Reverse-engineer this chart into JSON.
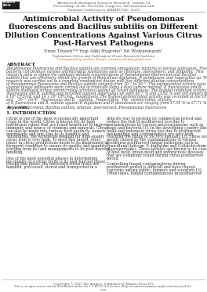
{
  "background_color": "#ffffff",
  "header_journal": "Advances in Biological Sciences Research, volume 14",
  "header_conf": "Proceedings of the 3rd IGHE Congress, International and",
  "header_conf2": "National Conferences (KABIRCTAC 2020)",
  "title": "Antimicrobial Activity of Pseudomonas\nfluorescens and Bacillus subtilis on Different\nDilution Concentrations Against Various Citrus\nPost-Harvest Pathogens",
  "authors": "Unan Triasih¹²* Yogi Adhi Nugroho¹ Sri Widyaningsih¹",
  "affil1": "¹Indonesian Citrus and Subtropical Fruits Research Institute",
  "affil2": "²Corresponding author. Email: unantriasthib@gmail.com",
  "abstract_title": "ABSTRACT",
  "keywords_label": "Keywords:",
  "keywords_text": "Antimicrobial, Bacillus subtilis, dilution, post-harvest, Pseudomonas fluorescens",
  "section1_title": "1. INTRODUCTION",
  "footer_copyright": "Copyright © 2021 The Authors. Published by Atlantis Press B.V.",
  "footer_license": "This is an open access article distributed under the CC BY-NC 4.0 license (http://creativecommons.org/licenses/by-nc/4.0/).",
  "footer_page": "559",
  "col1_lines": [
    "Citrus is one of the most economically important",
    "crops in the world. Citrus is known for its high",
    "nutritional values that are found beneficial to improve",
    "immunity and source of vitamins and minerals. Citrus",
    "can also be made into various food products, namely",
    "marmalade and jam. Due to its benefits and",
    "versatilities, the worldwide demand for high-quality",
    "citrus fruit is very high. To meet this target, every",
    "phase in citrus productions needs to be maintained in",
    "stringent condition to ensure its quality and quantity,",
    "starting from its land managements to its post-harvest",
    "handling.",
    "",
    "One of the most essential phases in determining",
    "the quality of a citrus fruits is its post-harvest phase.",
    "During this phase, the harvested citrus fruits are",
    "handled, processed, stored and transported in a"
  ],
  "col2_lines": [
    "delicate way to prolong its commercial period and",
    "reduce the risk of postharvest loss due to",
    "contaminations by various microorganisms such as",
    "fungi and bacteria [1]. In the developing country like",
    "India and Indonesia citrus loss due to postharvest",
    "mishandling and contamination are very high,",
    "reaching the range of 24-30% annually [2]. These are",
    "mostly caused by the contaminations of various",
    "foodborne postharvest fungal pathogens such as",
    "Penicillium italicum, P. digitatum and Colletotrichum",
    "gloeosporioides. These isolates are known to be cause",
    "of blue mold, green mold and anthracnose diseases",
    "that are commonly found during citrus postharvest",
    "period.",
    "",
    "Controlling fungal contaminations during",
    "postharvest period is difficult and have caused",
    "concerns among public, farmers and scientists [3].",
    "Often times, fungal contaminations in postharvest"
  ],
  "abstract_lines": [
    "Pseudomonas fluorescens and Bacillus subtilis are common antagonistic bacteria to various pathogens. These",
    "bacteria can produce various antimicrobial substances such as chitinase, siderophore, and antibiotic. This",
    "research aims to obtain the optimum dilution concentrations of Pseudomonas fluorescens and Bacillus",
    "subtilis that can effectively inhibit the growth of Penicillium digitatum, P. paradoxum, and Aspergillus sp. This",
    "research was carried out in a complete randomized design with five different dilution concentrations",
    "of Pseudomonas fluorescens and Bacillus subtilis ranging from 10⁻¹ to 10⁻⁵. The antimicrobial activity tests",
    "against fungal pathogens were carried out in triplicate using a dual culture method. P. fluorescens and B.",
    "subtilis displayed strong antimicrobial activities against all target pathogens. The highest inhibition activity of P.",
    "fluorescens and B. subtilis was recorded against Aspergillus sp. with 40.7 % and 23.92 % and cell density of 168",
    "x 10⁶ CFU/mL and 14 x 10⁶ CFU/mL, respectively. The highest antimicrobial activity was recorded at the 10⁻²",
    "and    10⁻²  for P.   fluorescens and B.   subtilis,  respectively.  The  antimicrobial  activity",
    "of P. fluorescens and B. subtilis against P. digitatum and P. paradoxum are ranging from 17.59 % to 27.71 %."
  ]
}
